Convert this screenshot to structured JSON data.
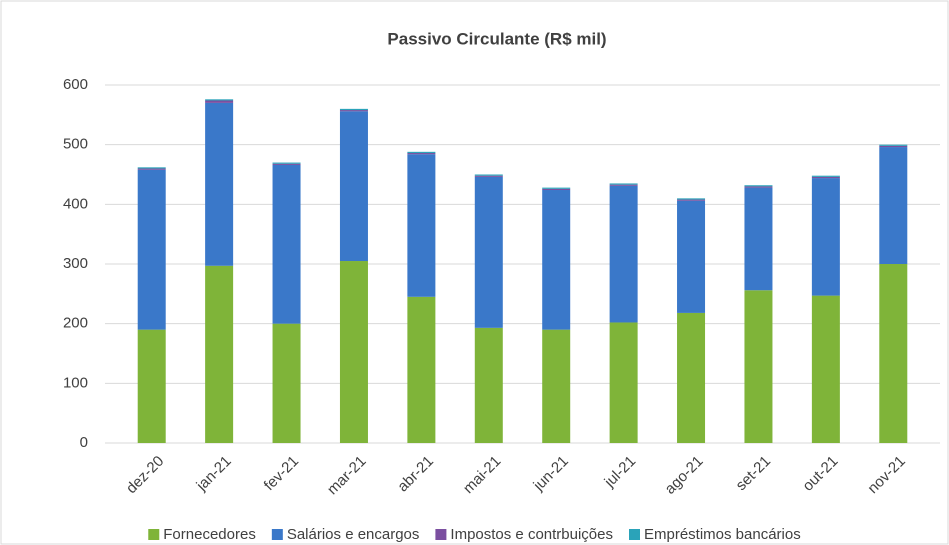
{
  "chart_data": {
    "type": "stacked_bar",
    "title": "Passivo Circulante (R$ mil)",
    "categories": [
      "dez-20",
      "jan-21",
      "fev-21",
      "mar-21",
      "abr-21",
      "mai-21",
      "jun-21",
      "jul-21",
      "ago-21",
      "set-21",
      "out-21",
      "nov-21"
    ],
    "series": [
      {
        "name": "Fornecedores",
        "color": "#7fb439",
        "values": [
          190,
          297,
          200,
          305,
          245,
          193,
          190,
          202,
          218,
          256,
          247,
          300
        ]
      },
      {
        "name": "Salários e encargos",
        "color": "#3a78c9",
        "values": [
          268,
          273,
          266,
          251,
          239,
          253,
          234,
          229,
          188,
          172,
          197,
          196
        ]
      },
      {
        "name": "Impostos e contrbuições",
        "color": "#7b4fa0",
        "values": [
          2,
          4,
          2,
          2,
          2,
          2,
          2,
          2,
          2,
          2,
          2,
          2
        ]
      },
      {
        "name": "Empréstimos bancários",
        "color": "#2aa3b9",
        "values": [
          2,
          2,
          2,
          2,
          2,
          2,
          2,
          2,
          2,
          2,
          2,
          2
        ]
      }
    ],
    "ylim": [
      0,
      600
    ],
    "yticks": [
      0,
      100,
      200,
      300,
      400,
      500,
      600
    ],
    "grid": true,
    "legend": "bottom"
  }
}
